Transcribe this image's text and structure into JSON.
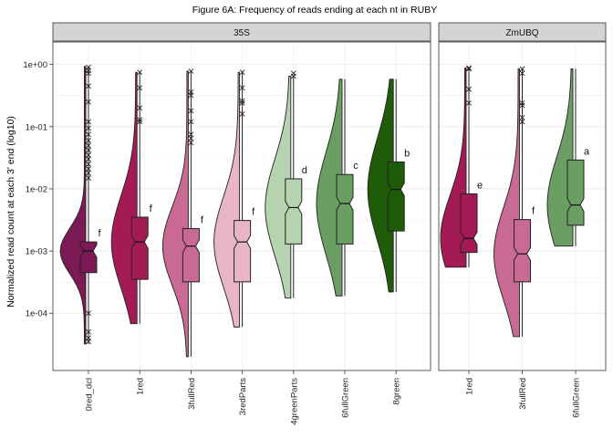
{
  "chart_data": {
    "type": "box",
    "title": "Figure 6A: Frequency of reads ending at each nt in RUBY",
    "ylabel": "Normalized read count at each 3' end (log10)",
    "xlabel": "",
    "y_scale": "log10",
    "ylim": [
      1.2e-05,
      2.3
    ],
    "y_ticks": [
      {
        "value": 1,
        "label": "1e+00"
      },
      {
        "value": 0.1,
        "label": "1e-01"
      },
      {
        "value": 0.01,
        "label": "1e-02"
      },
      {
        "value": 0.001,
        "label": "1e-03"
      },
      {
        "value": 0.0001,
        "label": "1e-04"
      }
    ],
    "grid": true,
    "legend": "none",
    "panels": [
      {
        "name": "35S",
        "groups": [
          {
            "label": "0red_dcl",
            "color": "#7b1a55",
            "min": 3.2e-05,
            "q1": 0.00045,
            "median": 0.001,
            "q3": 0.0014,
            "max": 0.93,
            "letter": "f",
            "outliers": [
              0.9,
              0.8,
              0.72,
              0.45,
              0.25,
              0.12,
              0.095,
              0.075,
              0.06,
              0.05,
              0.042,
              0.035,
              0.03,
              0.025,
              0.021,
              0.018,
              0.015,
              0.0001,
              5e-05,
              4e-05,
              3.5e-05
            ]
          },
          {
            "label": "1red",
            "color": "#a31a55",
            "min": 6.8e-05,
            "q1": 0.00035,
            "median": 0.0014,
            "q3": 0.0035,
            "max": 0.75,
            "letter": "f",
            "outliers": [
              0.75,
              0.42,
              0.2,
              0.13,
              0.12
            ]
          },
          {
            "label": "3fullRed",
            "color": "#c96a94",
            "min": 2e-05,
            "q1": 0.00032,
            "median": 0.0012,
            "q3": 0.0023,
            "max": 0.78,
            "letter": "f",
            "outliers": [
              0.78,
              0.36,
              0.32,
              0.18,
              0.12,
              0.075,
              0.065,
              0.055
            ]
          },
          {
            "label": "3redParts",
            "color": "#e8b4c8",
            "min": 6e-05,
            "q1": 0.00032,
            "median": 0.0014,
            "q3": 0.0031,
            "max": 0.75,
            "letter": "f",
            "outliers": [
              0.75,
              0.42,
              0.26,
              0.24,
              0.16
            ]
          },
          {
            "label": "4greenParts",
            "color": "#b6d3b0",
            "min": 0.000175,
            "q1": 0.0013,
            "median": 0.005,
            "q3": 0.0145,
            "max": 0.65,
            "letter": "d",
            "outliers": [
              0.72,
              0.65
            ]
          },
          {
            "label": "6fullGreen",
            "color": "#6b9e62",
            "min": 0.00019,
            "q1": 0.0013,
            "median": 0.0058,
            "q3": 0.017,
            "max": 0.58,
            "letter": "c",
            "outliers": []
          },
          {
            "label": "8green",
            "color": "#1f5c0a",
            "min": 0.00022,
            "q1": 0.0021,
            "median": 0.0098,
            "q3": 0.027,
            "max": 0.58,
            "letter": "b",
            "outliers": []
          }
        ]
      },
      {
        "name": "ZmUBQ",
        "groups": [
          {
            "label": "1red",
            "color": "#a31a55",
            "min": 0.00055,
            "q1": 0.00095,
            "median": 0.0016,
            "q3": 0.0083,
            "max": 0.88,
            "letter": "e",
            "outliers": [
              0.88,
              0.85,
              0.4,
              0.24
            ]
          },
          {
            "label": "3fullRed",
            "color": "#c96a94",
            "min": 4.2e-05,
            "q1": 0.00032,
            "median": 0.0009,
            "q3": 0.0032,
            "max": 0.85,
            "letter": "f",
            "outliers": [
              0.85,
              0.72,
              0.24,
              0.22,
              0.14,
              0.12
            ]
          },
          {
            "label": "6fullGreen",
            "color": "#6b9e62",
            "min": 0.0012,
            "q1": 0.0026,
            "median": 0.0055,
            "q3": 0.029,
            "max": 0.85,
            "letter": "a",
            "outliers": []
          }
        ]
      }
    ]
  }
}
